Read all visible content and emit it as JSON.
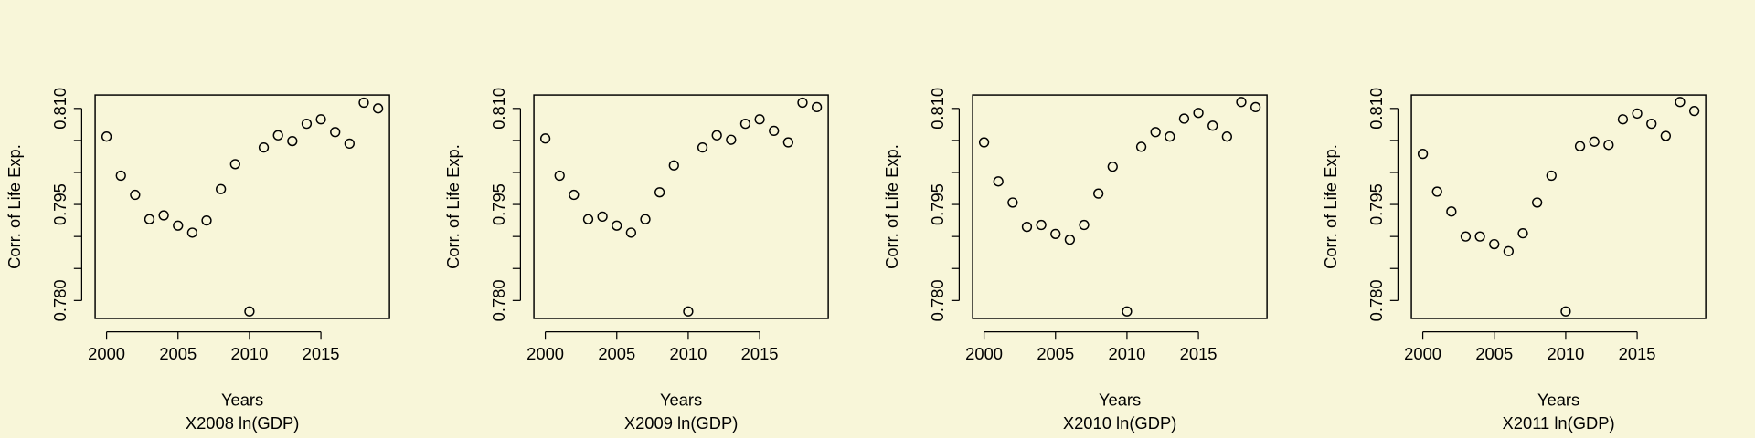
{
  "chart_data": [
    {
      "type": "scatter",
      "xlabel": "Years",
      "title": "X2008 ln(GDP)",
      "ylabel": "Corr. of Life Exp.",
      "color": "#000000",
      "x": [
        2000,
        2001,
        2002,
        2003,
        2004,
        2005,
        2006,
        2007,
        2008,
        2009,
        2010,
        2011,
        2012,
        2013,
        2014,
        2015,
        2016,
        2017,
        2018,
        2019
      ],
      "values": [
        0.8056,
        0.7995,
        0.7965,
        0.7927,
        0.7933,
        0.7917,
        0.7906,
        0.7925,
        0.7974,
        0.8013,
        0.7783,
        0.8039,
        0.8058,
        0.8049,
        0.8076,
        0.8083,
        0.8063,
        0.8045,
        0.8109,
        0.81
      ],
      "xlim": [
        1999.2,
        2019.8
      ],
      "ylim": [
        0.7772,
        0.8121
      ],
      "xticks": [
        2000,
        2005,
        2010,
        2015
      ],
      "yticks": [
        {
          "value": 0.78,
          "label": "0.780"
        },
        {
          "value": 0.785,
          "label": null
        },
        {
          "value": 0.79,
          "label": null
        },
        {
          "value": 0.795,
          "label": "0.795"
        },
        {
          "value": 0.8,
          "label": null
        },
        {
          "value": 0.805,
          "label": null
        },
        {
          "value": 0.81,
          "label": "0.810"
        }
      ]
    },
    {
      "type": "scatter",
      "xlabel": "Years",
      "title": "X2009 ln(GDP)",
      "ylabel": "Corr. of Life Exp.",
      "color": "#000000",
      "x": [
        2000,
        2001,
        2002,
        2003,
        2004,
        2005,
        2006,
        2007,
        2008,
        2009,
        2010,
        2011,
        2012,
        2013,
        2014,
        2015,
        2016,
        2017,
        2018,
        2019
      ],
      "values": [
        0.8053,
        0.7995,
        0.7965,
        0.7927,
        0.7931,
        0.7917,
        0.7906,
        0.7927,
        0.7969,
        0.8011,
        0.7783,
        0.8039,
        0.8058,
        0.8051,
        0.8076,
        0.8083,
        0.8065,
        0.8047,
        0.8109,
        0.8102
      ],
      "xlim": [
        1999.2,
        2019.8
      ],
      "ylim": [
        0.7772,
        0.8121
      ],
      "xticks": [
        2000,
        2005,
        2010,
        2015
      ],
      "yticks": [
        {
          "value": 0.78,
          "label": "0.780"
        },
        {
          "value": 0.785,
          "label": null
        },
        {
          "value": 0.79,
          "label": null
        },
        {
          "value": 0.795,
          "label": "0.795"
        },
        {
          "value": 0.8,
          "label": null
        },
        {
          "value": 0.805,
          "label": null
        },
        {
          "value": 0.81,
          "label": "0.810"
        }
      ]
    },
    {
      "type": "scatter",
      "xlabel": "Years",
      "title": "X2010 ln(GDP)",
      "ylabel": "Corr. of Life Exp.",
      "color": "#000000",
      "x": [
        2000,
        2001,
        2002,
        2003,
        2004,
        2005,
        2006,
        2007,
        2008,
        2009,
        2010,
        2011,
        2012,
        2013,
        2014,
        2015,
        2016,
        2017,
        2018,
        2019
      ],
      "values": [
        0.8047,
        0.7986,
        0.7953,
        0.7915,
        0.7918,
        0.7904,
        0.7895,
        0.7918,
        0.7967,
        0.8009,
        0.7783,
        0.804,
        0.8063,
        0.8056,
        0.8084,
        0.8093,
        0.8073,
        0.8056,
        0.811,
        0.8102
      ],
      "xlim": [
        1999.2,
        2019.8
      ],
      "ylim": [
        0.7772,
        0.8121
      ],
      "xticks": [
        2000,
        2005,
        2010,
        2015
      ],
      "yticks": [
        {
          "value": 0.78,
          "label": "0.780"
        },
        {
          "value": 0.785,
          "label": null
        },
        {
          "value": 0.79,
          "label": null
        },
        {
          "value": 0.795,
          "label": "0.795"
        },
        {
          "value": 0.8,
          "label": null
        },
        {
          "value": 0.805,
          "label": null
        },
        {
          "value": 0.81,
          "label": "0.810"
        }
      ]
    },
    {
      "type": "scatter",
      "xlabel": "Years",
      "title": "X2011 ln(GDP)",
      "ylabel": "Corr. of Life Exp.",
      "color": "#000000",
      "x": [
        2000,
        2001,
        2002,
        2003,
        2004,
        2005,
        2006,
        2007,
        2008,
        2009,
        2010,
        2011,
        2012,
        2013,
        2014,
        2015,
        2016,
        2017,
        2018,
        2019
      ],
      "values": [
        0.8029,
        0.797,
        0.7939,
        0.79,
        0.79,
        0.7888,
        0.7877,
        0.7905,
        0.7953,
        0.7995,
        0.7783,
        0.8041,
        0.8048,
        0.8043,
        0.8083,
        0.8092,
        0.8076,
        0.8057,
        0.811,
        0.8096
      ],
      "xlim": [
        1999.2,
        2019.8
      ],
      "ylim": [
        0.7772,
        0.8121
      ],
      "xticks": [
        2000,
        2005,
        2010,
        2015
      ],
      "yticks": [
        {
          "value": 0.78,
          "label": "0.780"
        },
        {
          "value": 0.785,
          "label": null
        },
        {
          "value": 0.79,
          "label": null
        },
        {
          "value": 0.795,
          "label": "0.795"
        },
        {
          "value": 0.8,
          "label": null
        },
        {
          "value": 0.805,
          "label": null
        },
        {
          "value": 0.81,
          "label": "0.810"
        }
      ]
    }
  ]
}
